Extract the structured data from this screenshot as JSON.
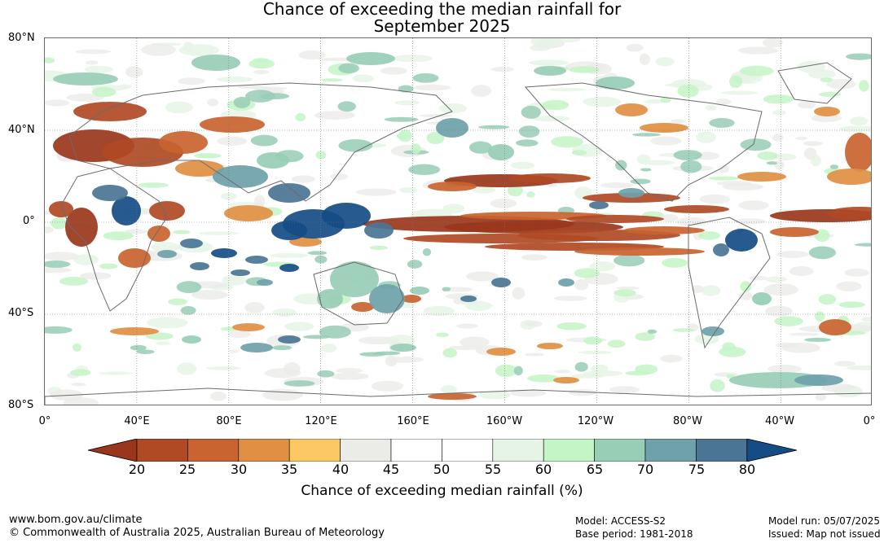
{
  "title_line1": "Chance of exceeding the median rainfall for",
  "title_line2": "September 2025",
  "lat_labels": [
    "80°N",
    "40°N",
    "0°",
    "40°S",
    "80°S"
  ],
  "lon_labels": [
    "0°",
    "40°E",
    "80°E",
    "120°E",
    "160°E",
    "160°W",
    "120°W",
    "80°W",
    "40°W",
    "0°"
  ],
  "colorbar": {
    "ticks": [
      "20",
      "25",
      "30",
      "35",
      "40",
      "45",
      "50",
      "55",
      "60",
      "65",
      "70",
      "75",
      "80"
    ],
    "colors": [
      "#9a361b",
      "#b04a25",
      "#c9632f",
      "#e18f42",
      "#fbc863",
      "#ebebe8",
      "#ffffff",
      "#ffffff",
      "#e6f4e6",
      "#c4f5c6",
      "#98cdb6",
      "#6ea1aa",
      "#4a7595",
      "#154c85"
    ],
    "label": "Chance of exceeding median rainfall (%)"
  },
  "footer": {
    "website": "www.bom.gov.au/climate",
    "copyright": "© Commonwealth of Australia 2025, Australian Bureau of Meteorology",
    "model": "Model: ACCESS-S2",
    "base_period": "Base period: 1981-2018",
    "model_run": "Model run: 05/07/2025",
    "issued": "Issued: Map not issued"
  }
}
